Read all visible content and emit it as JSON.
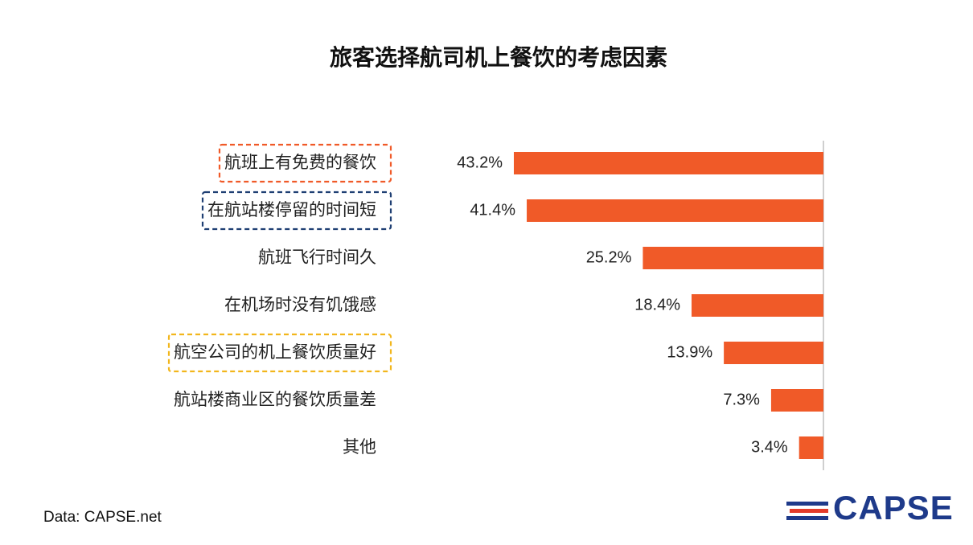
{
  "title": "旅客选择航司机上餐饮的考虑因素",
  "source": "Data: CAPSE.net",
  "logo_text": "CAPSE",
  "colors": {
    "bar": "#f05a28",
    "box_orange": "#f05a28",
    "box_navy": "#1f3f73",
    "box_yellow": "#f2b61c",
    "axis": "#bfbfbf"
  },
  "chart_data": {
    "type": "bar",
    "orientation": "horizontal",
    "bar_direction": "right-to-left",
    "categories": [
      "航班上有免费的餐饮",
      "在航站楼停留的时间短",
      "航班飞行时间久",
      "在机场时没有饥饿感",
      "航空公司的机上餐饮质量好",
      "航站楼商业区的餐饮质量差",
      "其他"
    ],
    "values": [
      43.2,
      41.4,
      25.2,
      18.4,
      13.9,
      7.3,
      3.4
    ],
    "value_labels": [
      "43.2%",
      "41.4%",
      "25.2%",
      "18.4%",
      "13.9%",
      "7.3%",
      "3.4%"
    ],
    "highlight_boxes": [
      "orange",
      "navy",
      "none",
      "none",
      "yellow",
      "none",
      "none"
    ],
    "xlim": [
      0,
      43.2
    ],
    "grid": false,
    "legend": "none"
  }
}
